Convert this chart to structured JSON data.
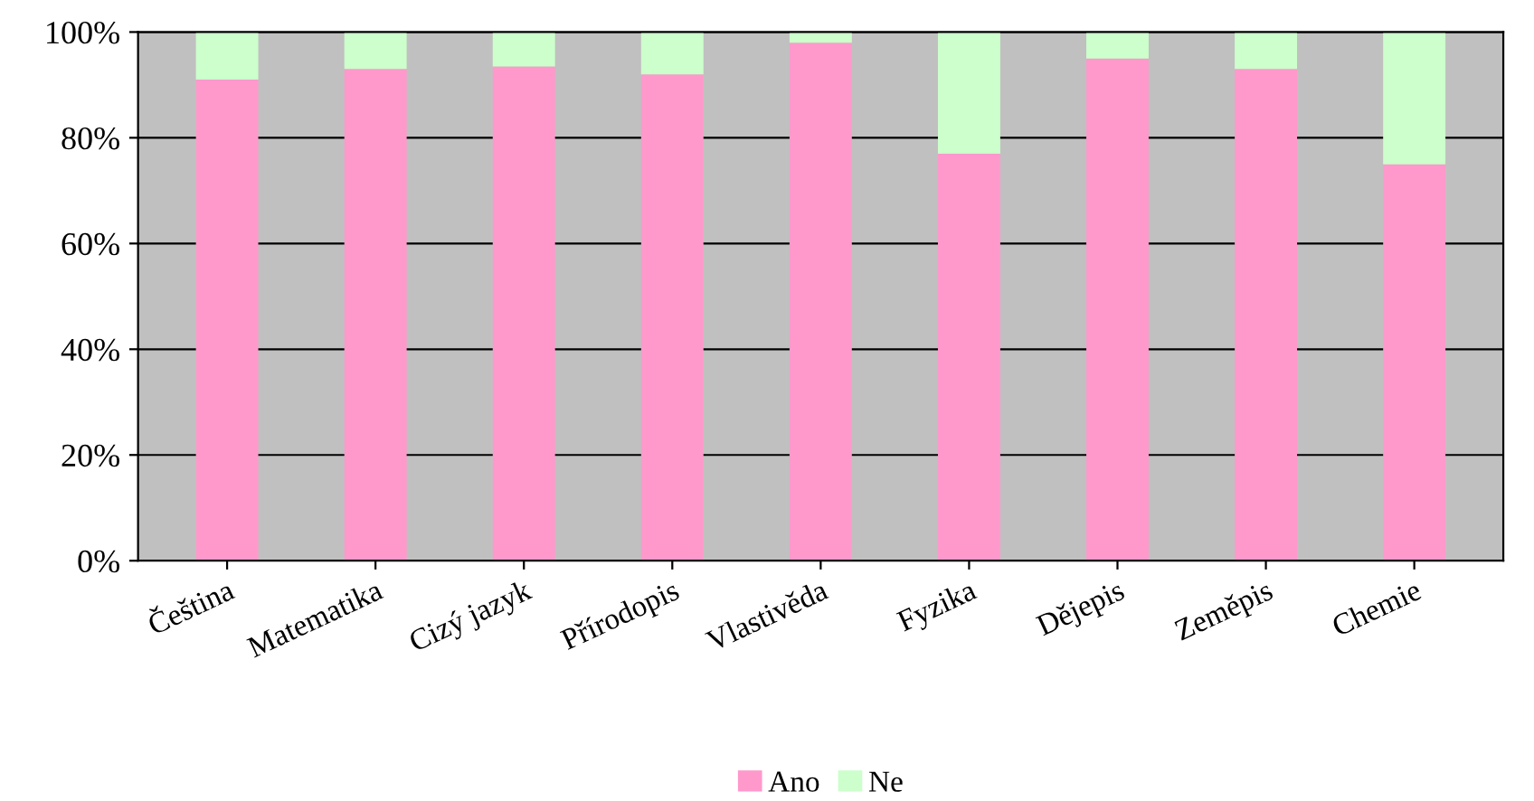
{
  "chart_data": {
    "type": "bar",
    "stacked": true,
    "categories": [
      "Čeština",
      "Matematika",
      "Cizý jazyk",
      "Přírodopis",
      "Vlastivěda",
      "Fyzika",
      "Dějepis",
      "Zeměpis",
      "Chemie"
    ],
    "series": [
      {
        "name": "Ano",
        "color": "#ff99cc",
        "values": [
          91,
          93,
          93.5,
          92,
          98,
          77,
          95,
          93,
          75
        ]
      },
      {
        "name": "Ne",
        "color": "#ccffcc",
        "values": [
          9,
          7,
          6.5,
          8,
          2,
          23,
          5,
          7,
          25
        ]
      }
    ],
    "ylim": [
      0,
      100
    ],
    "yticks": [
      {
        "value": 0,
        "label": "0%"
      },
      {
        "value": 20,
        "label": "20%"
      },
      {
        "value": 40,
        "label": "40%"
      },
      {
        "value": 60,
        "label": "60%"
      },
      {
        "value": 80,
        "label": "80%"
      },
      {
        "value": 100,
        "label": "100%"
      }
    ],
    "grid": "y",
    "legend": "bottom"
  }
}
